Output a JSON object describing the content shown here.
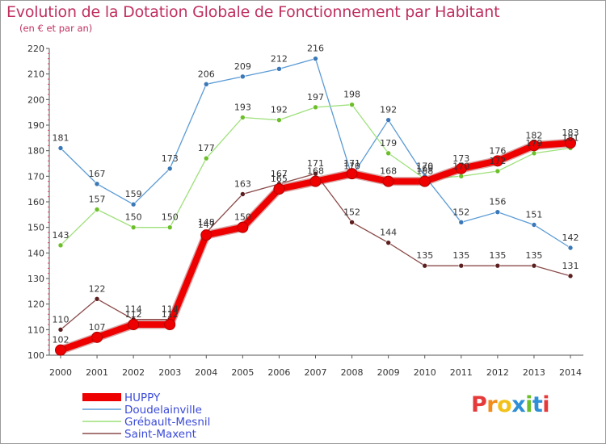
{
  "title": "Evolution de la Dotation Globale de Fonctionnement par Habitant",
  "subtitle": "(en € et par an)",
  "logo": {
    "letters": [
      "P",
      "r",
      "o",
      "x",
      "i",
      "t",
      "i"
    ],
    "colors": [
      "#e63a3a",
      "#f28c1a",
      "#f2c21a",
      "#2e8fd6",
      "#6cbf2a",
      "#2e8fd6",
      "#e63a3a"
    ]
  },
  "colors": {
    "title": "#c0305f",
    "legend_text": "#3b4bd8"
  },
  "chart_data": {
    "type": "line",
    "x": [
      2000,
      2001,
      2002,
      2003,
      2004,
      2005,
      2006,
      2007,
      2008,
      2009,
      2010,
      2011,
      2012,
      2013,
      2014
    ],
    "ylim": [
      100,
      220
    ],
    "yticks": [
      100,
      110,
      120,
      130,
      140,
      150,
      160,
      170,
      180,
      190,
      200,
      210,
      220
    ],
    "grid": false,
    "legend_position": "bottom-left",
    "series": [
      {
        "name": "Doudelainville",
        "color": "#5b9bd5",
        "marker": "#3a78b8",
        "values": [
          181,
          167,
          159,
          173,
          206,
          209,
          212,
          216,
          170,
          192,
          170,
          152,
          156,
          151,
          142
        ]
      },
      {
        "name": "Grébault-Mesnil",
        "color": "#9ee07a",
        "marker": "#6cbf2a",
        "values": [
          143,
          157,
          150,
          150,
          177,
          193,
          192,
          197,
          198,
          179,
          169,
          170,
          172,
          179,
          181
        ]
      },
      {
        "name": "Saint-Maxent",
        "color": "#8b4a4a",
        "marker": "#5c1f1f",
        "values": [
          110,
          122,
          114,
          114,
          148,
          163,
          167,
          171,
          152,
          144,
          135,
          135,
          135,
          135,
          131
        ]
      },
      {
        "name": "HUPPY",
        "color": "#ee0000",
        "marker": "#ee0000",
        "values": [
          102,
          107,
          112,
          112,
          147,
          150,
          165,
          168,
          171,
          168,
          168,
          173,
          176,
          182,
          183
        ]
      }
    ],
    "legend_order": [
      "HUPPY",
      "Doudelainville",
      "Grébault-Mesnil",
      "Saint-Maxent"
    ]
  }
}
